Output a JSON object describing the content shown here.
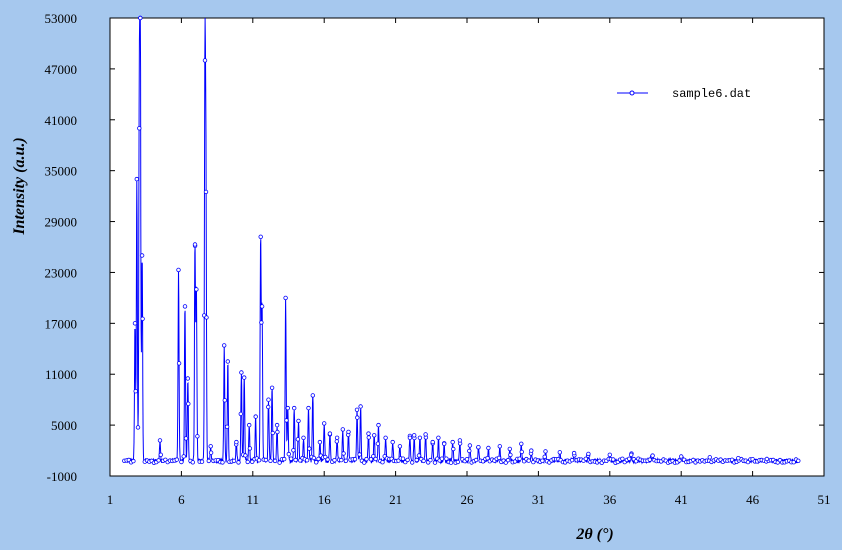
{
  "chart_data": {
    "type": "line",
    "title": "",
    "xlabel": "2θ (°)",
    "ylabel": "Intensity (a.u.)",
    "xlim": [
      1,
      51
    ],
    "ylim": [
      -1000,
      53000
    ],
    "xticks": [
      1,
      6,
      11,
      16,
      21,
      26,
      31,
      36,
      41,
      46,
      51
    ],
    "yticks": [
      -1000,
      5000,
      11000,
      17000,
      23000,
      29000,
      35000,
      41000,
      47000,
      53000
    ],
    "grid": false,
    "legend_position": "top-right",
    "marker": "open-circle",
    "series": [
      {
        "name": "sample6.dat",
        "color": "#0000ff",
        "x_start": 2.0,
        "x_end": 49.2,
        "baseline": 800,
        "peaks": [
          {
            "x": 2.75,
            "y": 17000
          },
          {
            "x": 2.88,
            "y": 34000
          },
          {
            "x": 3.05,
            "y": 40000
          },
          {
            "x": 3.12,
            "y": 53000
          },
          {
            "x": 3.25,
            "y": 25000
          },
          {
            "x": 4.5,
            "y": 3200
          },
          {
            "x": 5.8,
            "y": 23300
          },
          {
            "x": 6.25,
            "y": 19000
          },
          {
            "x": 6.45,
            "y": 10500
          },
          {
            "x": 6.95,
            "y": 26300
          },
          {
            "x": 7.05,
            "y": 21000
          },
          {
            "x": 7.65,
            "y": 48000
          },
          {
            "x": 7.72,
            "y": 32500
          },
          {
            "x": 8.05,
            "y": 2500
          },
          {
            "x": 9.0,
            "y": 14400
          },
          {
            "x": 9.25,
            "y": 12500
          },
          {
            "x": 9.85,
            "y": 3000
          },
          {
            "x": 10.2,
            "y": 11200
          },
          {
            "x": 10.4,
            "y": 10600
          },
          {
            "x": 10.75,
            "y": 5000
          },
          {
            "x": 11.2,
            "y": 6000
          },
          {
            "x": 11.55,
            "y": 27200
          },
          {
            "x": 11.65,
            "y": 19000
          },
          {
            "x": 12.1,
            "y": 8000
          },
          {
            "x": 12.35,
            "y": 9400
          },
          {
            "x": 12.7,
            "y": 5000
          },
          {
            "x": 13.3,
            "y": 20000
          },
          {
            "x": 13.45,
            "y": 7000
          },
          {
            "x": 13.9,
            "y": 7000
          },
          {
            "x": 14.2,
            "y": 5500
          },
          {
            "x": 14.55,
            "y": 3500
          },
          {
            "x": 14.9,
            "y": 7000
          },
          {
            "x": 15.2,
            "y": 8500
          },
          {
            "x": 15.7,
            "y": 3000
          },
          {
            "x": 16.0,
            "y": 5200
          },
          {
            "x": 16.4,
            "y": 4000
          },
          {
            "x": 16.9,
            "y": 3500
          },
          {
            "x": 17.3,
            "y": 4500
          },
          {
            "x": 17.7,
            "y": 4200
          },
          {
            "x": 18.3,
            "y": 6800
          },
          {
            "x": 18.55,
            "y": 7200
          },
          {
            "x": 19.1,
            "y": 4000
          },
          {
            "x": 19.5,
            "y": 3800
          },
          {
            "x": 19.8,
            "y": 5000
          },
          {
            "x": 20.3,
            "y": 3500
          },
          {
            "x": 20.8,
            "y": 3000
          },
          {
            "x": 21.3,
            "y": 2500
          },
          {
            "x": 22.0,
            "y": 3500
          },
          {
            "x": 22.3,
            "y": 3800
          },
          {
            "x": 22.7,
            "y": 3500
          },
          {
            "x": 23.1,
            "y": 3900
          },
          {
            "x": 23.6,
            "y": 3000
          },
          {
            "x": 24.0,
            "y": 3500
          },
          {
            "x": 24.4,
            "y": 2800
          },
          {
            "x": 25.0,
            "y": 3000
          },
          {
            "x": 25.5,
            "y": 3200
          },
          {
            "x": 26.2,
            "y": 2600
          },
          {
            "x": 26.8,
            "y": 2400
          },
          {
            "x": 27.5,
            "y": 2300
          },
          {
            "x": 28.3,
            "y": 2500
          },
          {
            "x": 29.0,
            "y": 2200
          },
          {
            "x": 29.8,
            "y": 2800
          },
          {
            "x": 30.5,
            "y": 2000
          },
          {
            "x": 31.5,
            "y": 1900
          },
          {
            "x": 32.5,
            "y": 1800
          },
          {
            "x": 33.5,
            "y": 1700
          },
          {
            "x": 34.5,
            "y": 1600
          },
          {
            "x": 36.0,
            "y": 1500
          },
          {
            "x": 37.5,
            "y": 1500
          },
          {
            "x": 39.0,
            "y": 1400
          },
          {
            "x": 41.0,
            "y": 1300
          },
          {
            "x": 43.0,
            "y": 1200
          },
          {
            "x": 45.0,
            "y": 1100
          },
          {
            "x": 47.0,
            "y": 1000
          }
        ]
      }
    ]
  }
}
